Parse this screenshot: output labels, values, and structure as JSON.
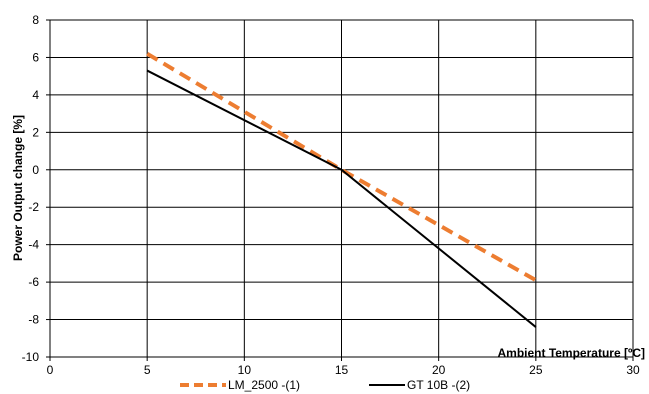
{
  "chart_data": {
    "type": "line",
    "xlabel": "Ambient  Temperature  [ºC]",
    "ylabel": "Power Output change [%]",
    "xlim": [
      0,
      30
    ],
    "ylim": [
      -10,
      8
    ],
    "x_ticks": [
      0,
      5,
      10,
      15,
      20,
      25,
      30
    ],
    "y_ticks": [
      -10,
      -8,
      -6,
      -4,
      -2,
      0,
      2,
      4,
      6,
      8
    ],
    "grid": true,
    "legend_position": "bottom",
    "series": [
      {
        "name": "LM_2500 -(1)",
        "color": "#ED7D31",
        "style": "dashed",
        "x": [
          5,
          15,
          25
        ],
        "y": [
          6.2,
          0,
          -5.9
        ]
      },
      {
        "name": "GT 10B -(2)",
        "color": "#000000",
        "style": "solid",
        "x": [
          5,
          15,
          25
        ],
        "y": [
          5.3,
          0,
          -8.4
        ]
      }
    ]
  }
}
